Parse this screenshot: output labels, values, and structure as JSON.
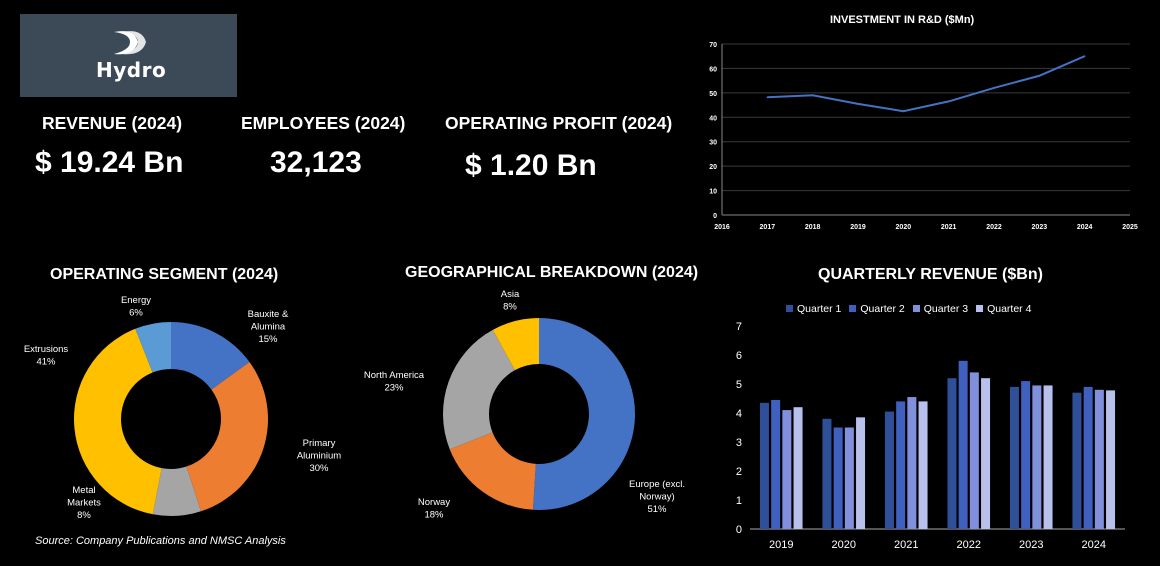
{
  "brand": {
    "name": "Hydro"
  },
  "kpis": [
    {
      "label": "REVENUE (2024)",
      "value": "$ 19.24 Bn"
    },
    {
      "label": "EMPLOYEES (2024)",
      "value": "32,123"
    },
    {
      "label": "OPERATING PROFIT (2024)",
      "value": "$ 1.20 Bn"
    }
  ],
  "source": "Source: Company Publications and NMSC Analysis",
  "colors": {
    "blue": "#4472c4",
    "orange": "#ed7d31",
    "grey": "#a5a5a5",
    "yellow": "#ffc000",
    "lightblue": "#5b9bd5",
    "q1": "#2f4f98",
    "q2": "#4060c0",
    "q3": "#8090dc",
    "q4": "#b8c0ec"
  },
  "chart_data": [
    {
      "type": "line",
      "title": "INVESTMENT IN R&D ($Mn)",
      "x": [
        2017,
        2018,
        2019,
        2020,
        2021,
        2022,
        2023,
        2024
      ],
      "series": [
        {
          "values": [
            48.2,
            49,
            45.5,
            42.5,
            46.5,
            52,
            57,
            65
          ]
        }
      ],
      "xlim": [
        2016,
        2025
      ],
      "ylim": [
        0,
        70
      ],
      "xticks": [
        "2016",
        "2017",
        "2018",
        "2019",
        "2020",
        "2021",
        "2022",
        "2023",
        "2024",
        "2025"
      ],
      "yticks": [
        "0",
        "10",
        "20",
        "30",
        "40",
        "50",
        "60",
        "70"
      ],
      "grid": true
    },
    {
      "type": "pie",
      "title": "OPERATING SEGMENT (2024)",
      "slices": [
        {
          "name": "Bauxite & Alumina",
          "label_lines": [
            "Bauxite &",
            "Alumina",
            "15%"
          ],
          "value": 15,
          "color": "#4472c4"
        },
        {
          "name": "Primary Aluminium",
          "label_lines": [
            "Primary",
            "Aluminium",
            "30%"
          ],
          "value": 30,
          "color": "#ed7d31"
        },
        {
          "name": "Metal Markets",
          "label_lines": [
            "Metal",
            "Markets",
            "8%"
          ],
          "value": 8,
          "color": "#a5a5a5"
        },
        {
          "name": "Extrusions",
          "label_lines": [
            "Extrusions",
            "41%"
          ],
          "value": 41,
          "color": "#ffc000"
        },
        {
          "name": "Energy",
          "label_lines": [
            "Energy",
            "6%"
          ],
          "value": 6,
          "color": "#5b9bd5"
        }
      ]
    },
    {
      "type": "pie",
      "title": "GEOGRAPHICAL BREAKDOWN (2024)",
      "slices": [
        {
          "name": "Europe (excl. Norway)",
          "label_lines": [
            "Europe (excl.",
            "Norway)",
            "51%"
          ],
          "value": 51,
          "color": "#4472c4"
        },
        {
          "name": "Norway",
          "label_lines": [
            "Norway",
            "18%"
          ],
          "value": 18,
          "color": "#ed7d31"
        },
        {
          "name": "North America",
          "label_lines": [
            "North America",
            "23%"
          ],
          "value": 23,
          "color": "#a5a5a5"
        },
        {
          "name": "Asia",
          "label_lines": [
            "Asia",
            "8%"
          ],
          "value": 8,
          "color": "#ffc000"
        }
      ]
    },
    {
      "type": "bar",
      "title": "QUARTERLY REVENUE ($Bn)",
      "categories": [
        "2019",
        "2020",
        "2021",
        "2022",
        "2023",
        "2024"
      ],
      "series": [
        {
          "name": "Quarter 1",
          "values": [
            4.35,
            3.8,
            4.05,
            5.2,
            4.9,
            4.7
          ],
          "color": "#2f4f98"
        },
        {
          "name": "Quarter 2",
          "values": [
            4.45,
            3.5,
            4.4,
            5.8,
            5.1,
            4.9
          ],
          "color": "#4060c0"
        },
        {
          "name": "Quarter 3",
          "values": [
            4.1,
            3.5,
            4.55,
            5.4,
            4.95,
            4.8
          ],
          "color": "#8090dc"
        },
        {
          "name": "Quarter 4",
          "values": [
            4.2,
            3.85,
            4.4,
            5.2,
            4.95,
            4.78
          ],
          "color": "#b8c0ec"
        }
      ],
      "ylim": [
        0,
        7
      ],
      "yticks": [
        "0",
        "1",
        "2",
        "3",
        "4",
        "5",
        "6",
        "7"
      ],
      "legend": "top"
    }
  ]
}
